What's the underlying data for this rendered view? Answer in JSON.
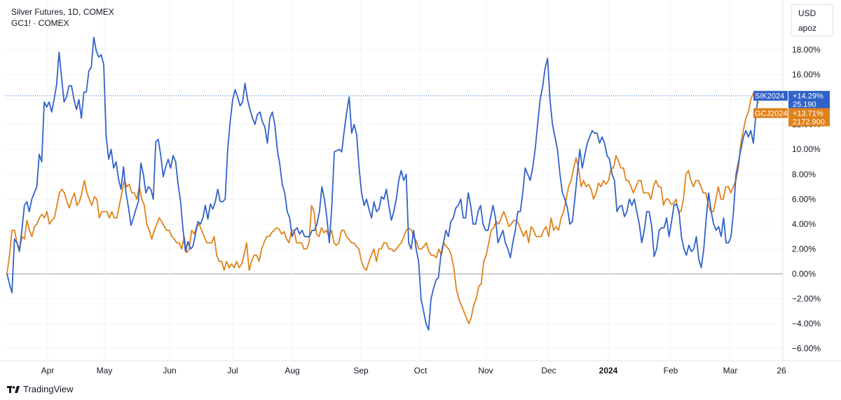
{
  "legend": {
    "main": "Silver Futures, 1D, COMEX",
    "secondary": "GC1! · COMEX"
  },
  "topbox": {
    "currency": "USD",
    "user": "apoz"
  },
  "brand": {
    "name": "TradingView",
    "icon": "tradingview-logo-icon"
  },
  "colors": {
    "silver": "#3162c9",
    "gold": "#e0821a",
    "grid": "#f0f3fa",
    "zero": "#9598a1"
  },
  "chart_data": {
    "type": "line",
    "x_labels": [
      "Apr",
      "May",
      "Jun",
      "Jul",
      "Aug",
      "Sep",
      "Oct",
      "Nov",
      "Dec",
      "2024",
      "Feb",
      "Mar",
      "26"
    ],
    "y_ticks": [
      "18.00%",
      "16.00%",
      "14.00%",
      "12.00%",
      "10.00%",
      "8.00%",
      "6.00%",
      "4.00%",
      "2.00%",
      "0.00%",
      "−2.00%",
      "−4.00%",
      "−6.00%"
    ],
    "ylim": [
      -6.5,
      19.5
    ],
    "series": [
      {
        "name": "SIK2024",
        "color": "#3162c9",
        "label_value": "+14.29%",
        "label_price": "25.190",
        "values": [
          0.0,
          -0.8,
          -1.5,
          2.8,
          2.5,
          1.8,
          3.5,
          5.5,
          5.8,
          5.0,
          6.0,
          6.5,
          7.0,
          9.6,
          9.0,
          13.8,
          13.4,
          13.8,
          13.0,
          14.0,
          15.2,
          17.8,
          15.8,
          13.8,
          14.2,
          15.1,
          15.1,
          14.0,
          13.2,
          14.0,
          12.5,
          14.6,
          14.6,
          16.3,
          16.6,
          19.0,
          17.9,
          17.4,
          17.6,
          16.8,
          11.0,
          9.2,
          10.0,
          8.5,
          9.0,
          7.6,
          6.8,
          8.6,
          6.5,
          5.3,
          3.9,
          4.5,
          5.2,
          5.8,
          8.9,
          8.0,
          6.5,
          7.0,
          6.8,
          6.0,
          10.6,
          10.8,
          9.5,
          7.8,
          8.6,
          9.2,
          8.5,
          9.5,
          9.0,
          7.2,
          5.8,
          3.5,
          1.8,
          2.6,
          2.0,
          2.2,
          3.2,
          4.2,
          4.0,
          4.5,
          5.5,
          4.4,
          5.6,
          5.2,
          5.8,
          6.8,
          5.8,
          5.8,
          6.0,
          10.0,
          12.2,
          14.0,
          14.8,
          14.2,
          13.5,
          13.8,
          15.3,
          14.0,
          13.2,
          12.5,
          12.0,
          12.8,
          13.0,
          12.2,
          11.8,
          10.5,
          12.5,
          13.0,
          12.0,
          10.0,
          8.8,
          7.2,
          6.5,
          5.0,
          4.5,
          3.0,
          3.5,
          3.7,
          3.2,
          3.5,
          3.0,
          3.0,
          3.0,
          3.5,
          3.5,
          4.0,
          5.0,
          7.0,
          6.0,
          4.5,
          2.5,
          5.5,
          9.8,
          9.9,
          10.0,
          9.8,
          11.5,
          13.0,
          14.2,
          11.3,
          12.0,
          11.2,
          8.5,
          6.5,
          5.5,
          6.0,
          5.2,
          4.5,
          5.8,
          5.0,
          5.2,
          6.2,
          6.0,
          6.8,
          5.5,
          4.3,
          5.0,
          6.0,
          7.5,
          8.3,
          7.5,
          8.0,
          2.5,
          2.0,
          3.5,
          2.0,
          1.0,
          -2.0,
          -3.0,
          -4.0,
          -4.5,
          -2.0,
          -1.2,
          -0.5,
          -0.3,
          1.5,
          2.5,
          3.5,
          3.0,
          4.2,
          4.5,
          5.3,
          5.5,
          6.0,
          4.5,
          4.5,
          6.5,
          5.5,
          4.0,
          4.0,
          5.0,
          5.5,
          4.0,
          3.5,
          3.5,
          4.5,
          5.5,
          4.5,
          2.5,
          3.0,
          3.5,
          2.5,
          2.0,
          1.3,
          2.5,
          3.5,
          5.0,
          5.0,
          6.5,
          8.5,
          8.0,
          7.5,
          8.5,
          10.0,
          12.0,
          14.0,
          15.0,
          16.5,
          17.3,
          14.0,
          12.0,
          11.0,
          10.0,
          8.0,
          6.5,
          6.0,
          5.3,
          4.0,
          4.2,
          6.0,
          8.0,
          10.0,
          8.5,
          9.5,
          10.5,
          11.0,
          11.5,
          11.3,
          11.3,
          10.5,
          11.0,
          10.5,
          9.5,
          9.2,
          8.0,
          7.5,
          5.0,
          5.4,
          5.5,
          4.6,
          5.0,
          6.0,
          5.5,
          6.0,
          5.0,
          4.0,
          2.5,
          3.5,
          5.0,
          5.0,
          3.8,
          1.4,
          2.0,
          3.5,
          3.7,
          3.7,
          4.5,
          3.0,
          4.2,
          5.5,
          5.6,
          5.0,
          3.0,
          2.0,
          1.5,
          2.3,
          1.8,
          2.0,
          3.0,
          1.2,
          0.5,
          2.0,
          4.5,
          6.5,
          5.0,
          4.0,
          3.5,
          3.8,
          3.0,
          4.5,
          2.5,
          2.5,
          3.0,
          5.0,
          8.0,
          9.0,
          10.0,
          11.0,
          11.5,
          11.0,
          11.5,
          10.5,
          12.8,
          14.3
        ]
      },
      {
        "name": "GCJ2024",
        "color": "#e0821a",
        "label_value": "+13.71%",
        "label_price": "2172.900",
        "values": [
          0.0,
          1.5,
          3.5,
          3.5,
          2.5,
          2.0,
          3.0,
          2.8,
          4.3,
          3.5,
          3.0,
          3.8,
          4.0,
          4.5,
          4.8,
          4.5,
          5.0,
          4.0,
          4.3,
          4.5,
          5.5,
          6.5,
          6.8,
          6.5,
          5.8,
          5.3,
          6.0,
          6.5,
          5.5,
          5.8,
          6.5,
          7.5,
          6.5,
          6.0,
          5.5,
          6.2,
          6.0,
          4.5,
          5.0,
          5.0,
          5.0,
          4.5,
          5.0,
          4.5,
          4.5,
          5.5,
          6.5,
          7.5,
          7.0,
          7.2,
          6.5,
          6.5,
          6.0,
          7.0,
          6.0,
          5.5,
          4.0,
          3.5,
          2.8,
          3.5,
          4.0,
          4.5,
          4.2,
          3.8,
          3.5,
          3.5,
          3.0,
          2.8,
          2.5,
          2.5,
          2.0,
          3.0,
          1.7,
          2.0,
          3.5,
          3.2,
          3.8,
          4.0,
          3.5,
          3.0,
          2.5,
          2.5,
          2.5,
          3.0,
          1.5,
          1.0,
          1.0,
          0.3,
          1.0,
          0.5,
          0.8,
          0.5,
          1.0,
          0.5,
          0.8,
          1.5,
          2.5,
          0.3,
          1.0,
          1.5,
          1.5,
          1.0,
          2.0,
          2.5,
          3.0,
          3.0,
          3.3,
          3.5,
          3.7,
          3.6,
          3.2,
          3.4,
          2.8,
          2.5,
          3.5,
          3.5,
          2.5,
          2.5,
          2.5,
          2.0,
          2.0,
          2.5,
          5.5,
          5.0,
          3.2,
          3.0,
          3.7,
          3.3,
          3.5,
          3.0,
          3.5,
          2.5,
          2.3,
          2.5,
          3.5,
          3.5,
          3.0,
          2.8,
          2.5,
          2.5,
          2.2,
          2.0,
          1.0,
          0.5,
          0.3,
          1.0,
          1.5,
          2.0,
          1.0,
          2.0,
          2.0,
          2.5,
          2.5,
          2.0,
          2.0,
          1.8,
          2.0,
          2.3,
          2.5,
          3.0,
          3.5,
          3.7,
          3.5,
          3.0,
          2.6,
          2.0,
          2.0,
          2.2,
          2.5,
          1.8,
          1.5,
          1.5,
          1.3,
          2.0,
          1.5,
          2.5,
          2.2,
          2.0,
          1.5,
          0.5,
          -1.2,
          -2.0,
          -2.5,
          -3.0,
          -3.5,
          -4.0,
          -3.5,
          -2.5,
          -2.0,
          -1.0,
          -0.8,
          1.0,
          1.5,
          2.5,
          3.5,
          3.7,
          4.2,
          4.0,
          4.5,
          5.0,
          4.5,
          3.8,
          4.0,
          4.3,
          4.3,
          4.0,
          3.5,
          3.0,
          3.5,
          2.5,
          3.8,
          3.5,
          3.0,
          3.0,
          3.0,
          3.5,
          3.8,
          3.0,
          4.5,
          3.5,
          3.8,
          3.5,
          4.5,
          5.0,
          6.0,
          7.0,
          7.5,
          8.5,
          9.3,
          8.5,
          7.0,
          7.5,
          7.0,
          7.2,
          6.8,
          6.0,
          6.5,
          7.3,
          7.0,
          7.5,
          7.2,
          7.5,
          8.5,
          8.5,
          9.5,
          9.0,
          8.5,
          8.5,
          7.5,
          7.5,
          7.0,
          6.5,
          7.0,
          7.5,
          7.5,
          6.5,
          6.5,
          6.5,
          6.0,
          7.0,
          7.5,
          7.0,
          7.0,
          5.5,
          6.0,
          6.0,
          5.6,
          5.6,
          6.0,
          5.0,
          5.0,
          6.0,
          8.0,
          8.3,
          7.5,
          7.0,
          7.5,
          7.5,
          7.0,
          6.5,
          6.5,
          5.5,
          5.0,
          5.0,
          6.0,
          7.0,
          6.0,
          6.0,
          7.0,
          7.0,
          6.5,
          7.0,
          7.5,
          8.5,
          10.5,
          11.5,
          12.5,
          13.0,
          14.0,
          14.5,
          14.3,
          13.7
        ]
      }
    ]
  }
}
